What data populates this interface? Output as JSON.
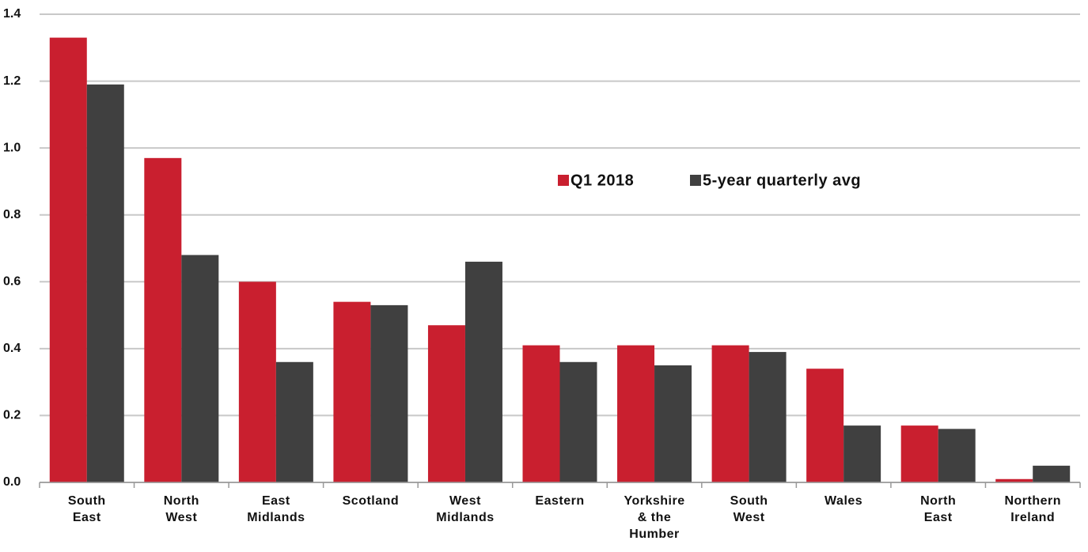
{
  "chart_data": {
    "type": "bar",
    "categories": [
      "South East",
      "North West",
      "East Midlands",
      "Scotland",
      "West Midlands",
      "Eastern",
      "Yorkshire & the Humber",
      "South West",
      "Wales",
      "North East",
      "Northern Ireland"
    ],
    "series": [
      {
        "name": "Q1 2018",
        "color": "#c91f2f",
        "values": [
          1.33,
          0.97,
          0.6,
          0.54,
          0.47,
          0.41,
          0.41,
          0.41,
          0.34,
          0.17,
          0.01
        ]
      },
      {
        "name": "5-year quarterly avg",
        "color": "#404040",
        "values": [
          1.19,
          0.68,
          0.36,
          0.53,
          0.66,
          0.36,
          0.35,
          0.39,
          0.17,
          0.16,
          0.05
        ]
      }
    ],
    "ylim": [
      0,
      1.4
    ],
    "yticks": [
      {
        "value": 0,
        "label": "0.0"
      },
      0.2,
      0.4,
      0.6,
      0.8,
      {
        "value": 1,
        "label": "1.0"
      },
      1.2,
      1.4
    ],
    "grid": true
  }
}
